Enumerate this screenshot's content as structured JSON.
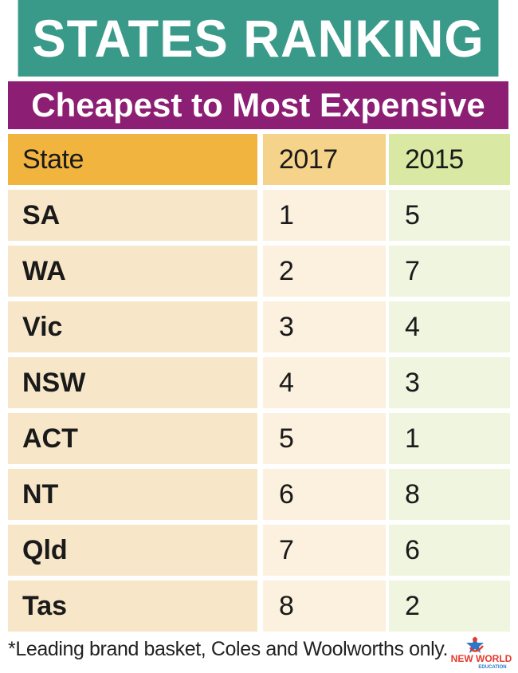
{
  "title": "STATES RANKING",
  "subtitle": "Cheapest to Most Expensive",
  "table": {
    "headers": {
      "state": "State",
      "y2017": "2017",
      "y2015": "2015"
    },
    "rows": [
      {
        "state": "SA",
        "y2017": "1",
        "y2015": "5"
      },
      {
        "state": "WA",
        "y2017": "2",
        "y2015": "7"
      },
      {
        "state": "Vic",
        "y2017": "3",
        "y2015": "4"
      },
      {
        "state": "NSW",
        "y2017": "4",
        "y2015": "3"
      },
      {
        "state": "ACT",
        "y2017": "5",
        "y2015": "1"
      },
      {
        "state": "NT",
        "y2017": "6",
        "y2015": "8"
      },
      {
        "state": "Qld",
        "y2017": "7",
        "y2015": "6"
      },
      {
        "state": "Tas",
        "y2017": "8",
        "y2015": "2"
      }
    ]
  },
  "footnote": "*Leading brand basket, Coles and Woolworths only.",
  "logo": {
    "icon": "new-world-education-logo",
    "line1": "NEW WORLD",
    "line2": "EDUCATION"
  },
  "colors": {
    "title_bg": "#3a9a8a",
    "subtitle_bg": "#8c1e73",
    "header_state": "#f1b43f",
    "header_2017": "#f6d38b",
    "header_2015": "#d9e8a2"
  }
}
